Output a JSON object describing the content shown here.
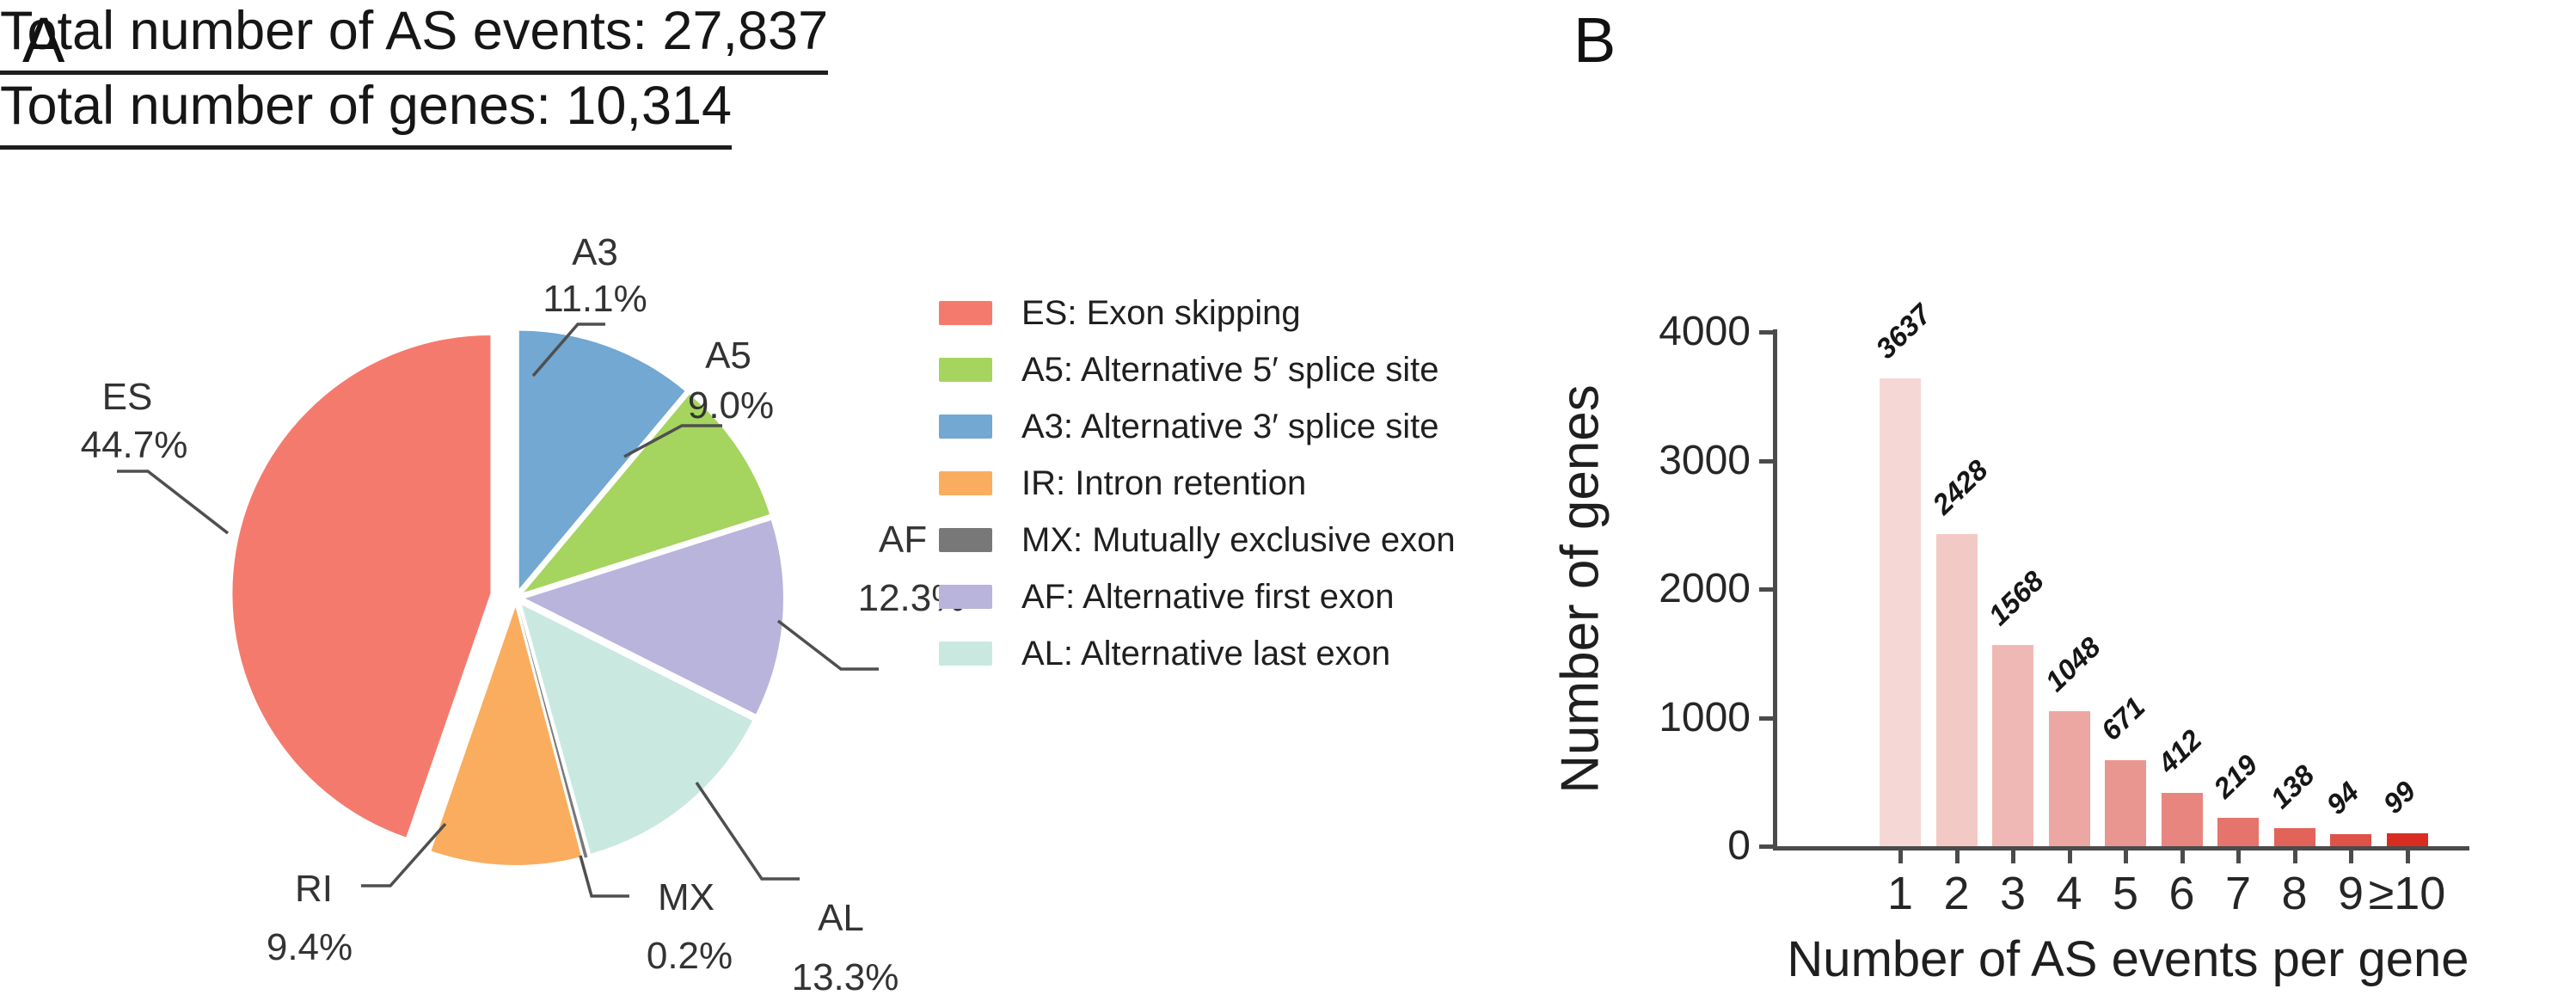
{
  "panels": {
    "a": {
      "letter": "A",
      "title": "Total number of AS events: 27,837"
    },
    "b": {
      "letter": "B",
      "title": "Total number of genes: 10,314"
    }
  },
  "chart_data": [
    {
      "type": "pie",
      "title": "Total number of AS events: 27,837",
      "total_events": "27,837",
      "start_angle_deg": 0,
      "direction": "clockwise",
      "exploded": true,
      "slices": [
        {
          "name": "A3",
          "pct": 11.1,
          "label": "11.1%",
          "color": "#72a8d1"
        },
        {
          "name": "A5",
          "pct": 9.0,
          "label": "9.0%",
          "color": "#a5d45f"
        },
        {
          "name": "AF",
          "pct": 12.3,
          "label": "12.3%",
          "color": "#b9b4db"
        },
        {
          "name": "AL",
          "pct": 13.3,
          "label": "13.3%",
          "color": "#c9e9e0"
        },
        {
          "name": "MX",
          "pct": 0.2,
          "label": "0.2%",
          "color": "#787878"
        },
        {
          "name": "RI",
          "pct": 9.4,
          "label": "9.4%",
          "color": "#faad5e"
        },
        {
          "name": "ES",
          "pct": 44.7,
          "label": "44.7%",
          "color": "#f57a6e"
        }
      ],
      "legend_position": "right",
      "legend": [
        {
          "text": "ES: Exon skipping",
          "color": "#f57a6e"
        },
        {
          "text": "A5: Alternative 5′ splice site",
          "color": "#a5d45f"
        },
        {
          "text": "A3: Alternative 3′ splice site",
          "color": "#72a8d1"
        },
        {
          "text": "IR: Intron retention",
          "color": "#faad5e"
        },
        {
          "text": "MX: Mutually exclusive exon",
          "color": "#787878"
        },
        {
          "text": "AF: Alternative first exon",
          "color": "#b9b4db"
        },
        {
          "text": "AL: Alternative last exon",
          "color": "#c9e9e0"
        }
      ]
    },
    {
      "type": "bar",
      "title": "Total number of genes: 10,314",
      "total_genes": "10,314",
      "categories": [
        "1",
        "2",
        "3",
        "4",
        "5",
        "6",
        "7",
        "8",
        "9",
        "≥10"
      ],
      "values": [
        3637,
        2428,
        1568,
        1048,
        671,
        412,
        219,
        138,
        94,
        99
      ],
      "value_labels": [
        "3637",
        "2428",
        "1568",
        "1048",
        "671",
        "412",
        "219",
        "138",
        "94",
        "99"
      ],
      "bar_colors": [
        "#f5d8d6",
        "#f3c9c6",
        "#f0b8b4",
        "#eda7a2",
        "#ea9690",
        "#e7857e",
        "#e4746c",
        "#e1635a",
        "#de5248",
        "#da2d22"
      ],
      "xlabel": "Number of AS events per gene",
      "ylabel": "Number of genes",
      "ylim": [
        0,
        4000
      ],
      "yticks": [
        0,
        1000,
        2000,
        3000,
        4000
      ],
      "grid": false,
      "value_labels_rotated": true,
      "axis_color": "#4b4b4b"
    }
  ]
}
